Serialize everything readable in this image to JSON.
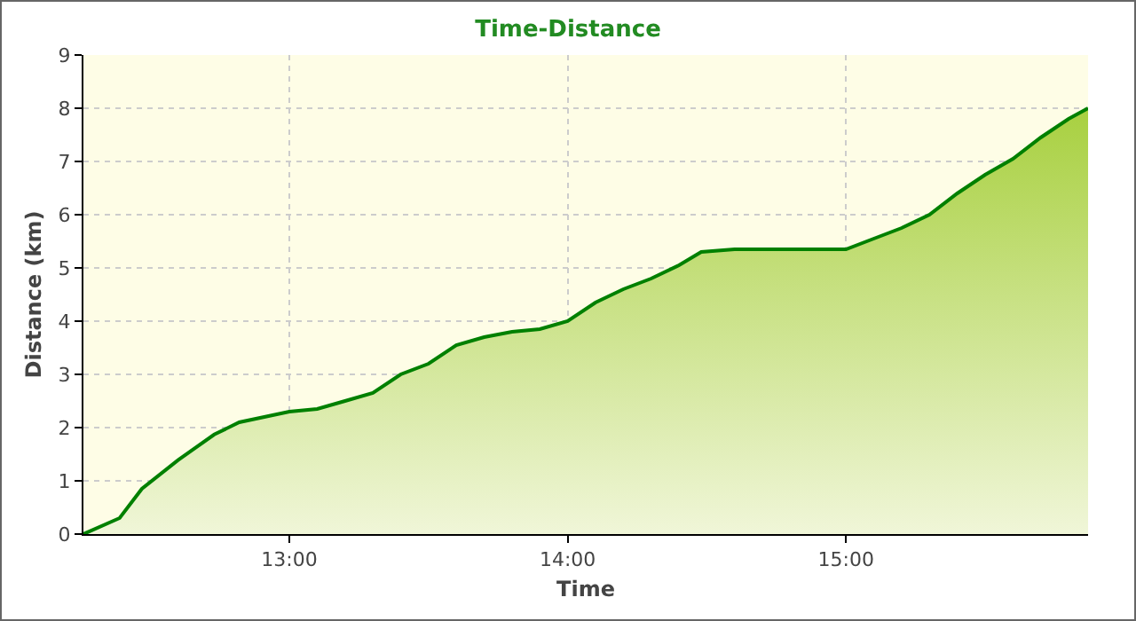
{
  "chart_data": {
    "type": "area",
    "title": "Time-Distance",
    "xlabel": "Time",
    "ylabel": "Distance (km)",
    "x": [
      12.26,
      12.39,
      12.47,
      12.6,
      12.73,
      12.82,
      13.0,
      13.1,
      13.2,
      13.3,
      13.4,
      13.5,
      13.6,
      13.7,
      13.8,
      13.9,
      14.0,
      14.1,
      14.2,
      14.3,
      14.4,
      14.48,
      14.6,
      15.0,
      15.1,
      15.2,
      15.3,
      15.4,
      15.5,
      15.6,
      15.7,
      15.8,
      15.87
    ],
    "series": [
      {
        "color": "#008000",
        "values": [
          0,
          0.3,
          0.85,
          1.39,
          1.87,
          2.1,
          2.3,
          2.35,
          2.5,
          2.65,
          3.0,
          3.2,
          3.55,
          3.7,
          3.8,
          3.85,
          4.0,
          4.35,
          4.6,
          4.8,
          5.05,
          5.3,
          5.35,
          5.35,
          5.55,
          5.75,
          6.0,
          6.4,
          6.75,
          7.05,
          7.45,
          7.8,
          8.0
        ]
      }
    ],
    "xlim": [
      12.26,
      15.87
    ],
    "xticks": [
      {
        "value": 13,
        "label": "13:00"
      },
      {
        "value": 14,
        "label": "14:00"
      },
      {
        "value": 15,
        "label": "15:00"
      }
    ],
    "ylim": [
      0,
      9
    ],
    "yticks": [
      0,
      1,
      2,
      3,
      4,
      5,
      6,
      7,
      8,
      9
    ],
    "grid": true
  }
}
